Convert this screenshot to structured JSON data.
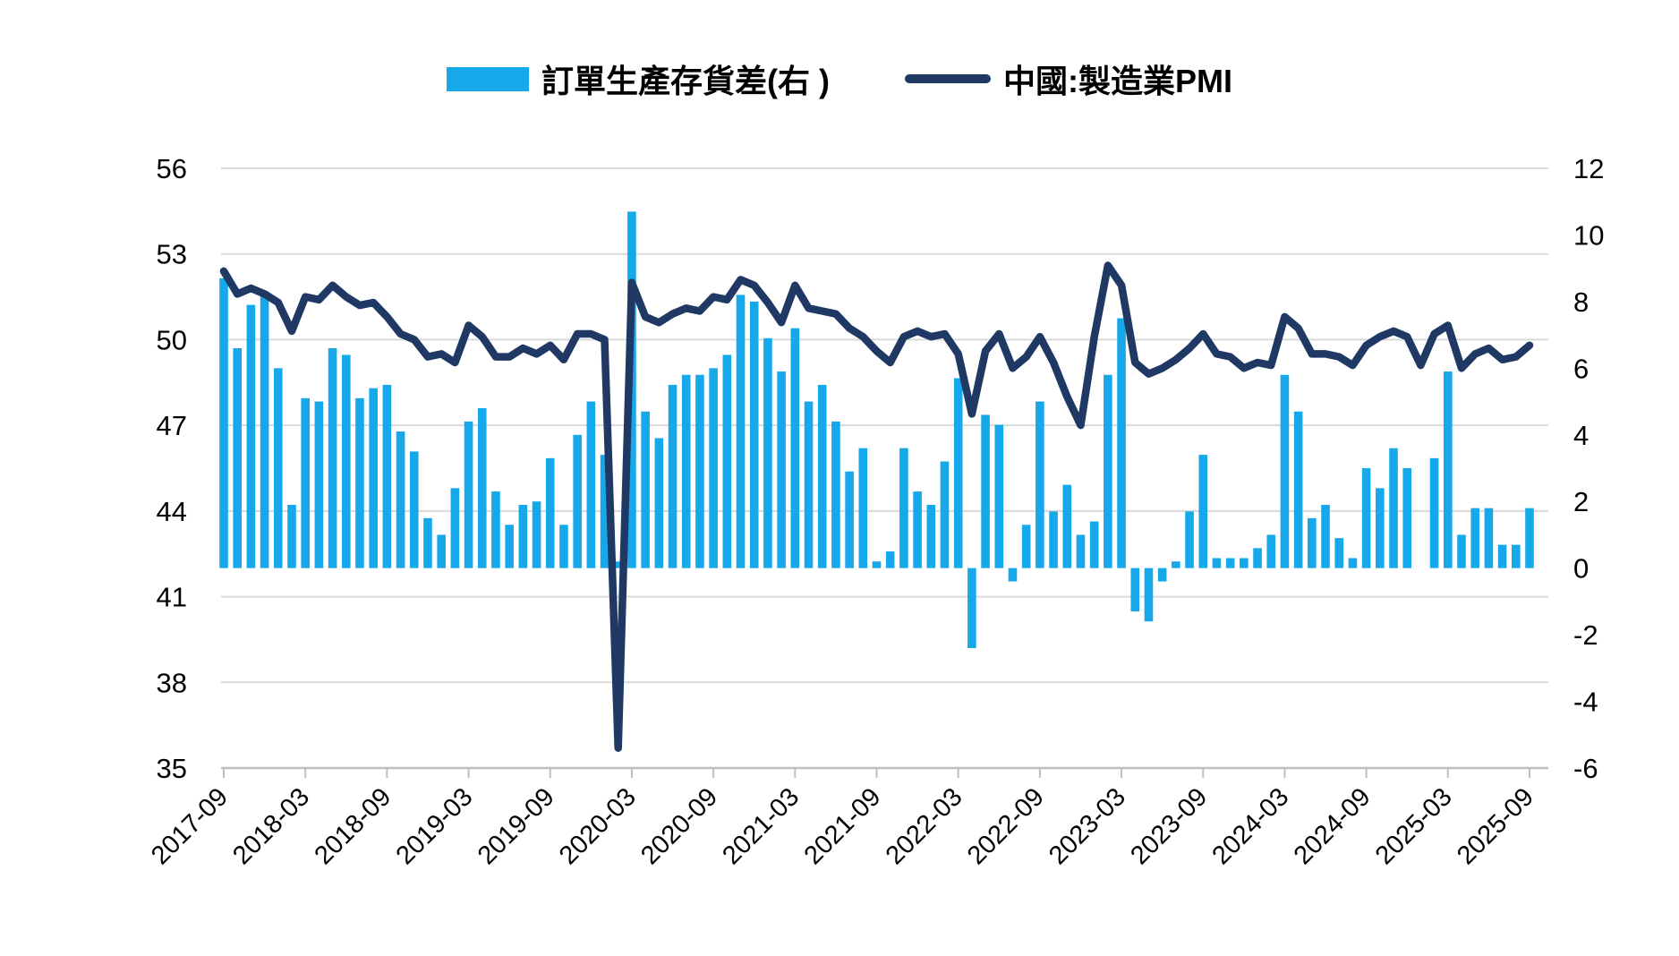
{
  "legend": {
    "items": [
      {
        "label": "訂單生產存貨差(右 )",
        "marker": "bar-swatch-icon"
      },
      {
        "label": "中國:製造業PMI",
        "marker": "line-swatch-icon"
      }
    ]
  },
  "colors": {
    "bar": "#17A8EA",
    "line": "#1F3864",
    "grid": "#D9D9D9",
    "axis": "#BFBFBF",
    "text": "#000000",
    "background": "#FFFFFF"
  },
  "chart_data": {
    "type": "bar+line",
    "title": "",
    "xlabel": "",
    "ylabel_left": "",
    "ylabel_right": "",
    "legend_position": "top-center",
    "grid": true,
    "left_axis": {
      "min": 35,
      "max": 56,
      "ticks": [
        56,
        53,
        50,
        47,
        44,
        41,
        38,
        35
      ]
    },
    "right_axis": {
      "min": -6,
      "max": 12,
      "ticks": [
        12,
        10,
        8,
        6,
        4,
        2,
        0,
        -2,
        -4,
        -6
      ]
    },
    "x_tick_labels": [
      "2017-09",
      "2018-03",
      "2018-09",
      "2019-03",
      "2019-09",
      "2020-03",
      "2020-09",
      "2021-03",
      "2021-09",
      "2022-03",
      "2022-09",
      "2023-03",
      "2023-09",
      "2024-03",
      "2024-09",
      "2025-03",
      "2025-09"
    ],
    "x_tick_every": 6,
    "categories": [
      "2017-09",
      "2017-10",
      "2017-11",
      "2017-12",
      "2018-01",
      "2018-02",
      "2018-03",
      "2018-04",
      "2018-05",
      "2018-06",
      "2018-07",
      "2018-08",
      "2018-09",
      "2018-10",
      "2018-11",
      "2018-12",
      "2019-01",
      "2019-02",
      "2019-03",
      "2019-04",
      "2019-05",
      "2019-06",
      "2019-07",
      "2019-08",
      "2019-09",
      "2019-10",
      "2019-11",
      "2019-12",
      "2020-01",
      "2020-02",
      "2020-03",
      "2020-04",
      "2020-05",
      "2020-06",
      "2020-07",
      "2020-08",
      "2020-09",
      "2020-10",
      "2020-11",
      "2020-12",
      "2021-01",
      "2021-02",
      "2021-03",
      "2021-04",
      "2021-05",
      "2021-06",
      "2021-07",
      "2021-08",
      "2021-09",
      "2021-10",
      "2021-11",
      "2021-12",
      "2022-01",
      "2022-02",
      "2022-03",
      "2022-04",
      "2022-05",
      "2022-06",
      "2022-07",
      "2022-08",
      "2022-09",
      "2022-10",
      "2022-11",
      "2022-12",
      "2023-01",
      "2023-02",
      "2023-03",
      "2023-04",
      "2023-05",
      "2023-06",
      "2023-07",
      "2023-08",
      "2023-09",
      "2023-10",
      "2023-11",
      "2023-12",
      "2024-01",
      "2024-02",
      "2024-03",
      "2024-04",
      "2024-05",
      "2024-06",
      "2024-07",
      "2024-08",
      "2024-09",
      "2024-10",
      "2024-11",
      "2024-12",
      "2025-01",
      "2025-02",
      "2025-03",
      "2025-04",
      "2025-05",
      "2025-06",
      "2025-07",
      "2025-08",
      "2025-09"
    ],
    "series": [
      {
        "name": "訂單生產存貨差(右 )",
        "type": "bar",
        "axis": "right",
        "values": [
          8.7,
          6.6,
          7.9,
          8.3,
          6.0,
          1.9,
          5.1,
          5.0,
          6.6,
          6.4,
          5.1,
          5.4,
          5.5,
          4.1,
          3.5,
          1.5,
          1.0,
          2.4,
          4.4,
          4.8,
          2.3,
          1.3,
          1.9,
          2.0,
          3.3,
          1.3,
          4.0,
          5.0,
          3.4,
          0.2,
          10.7,
          4.7,
          3.9,
          5.5,
          5.8,
          5.8,
          6.0,
          6.4,
          8.2,
          8.0,
          6.9,
          5.9,
          7.2,
          5.0,
          5.5,
          4.4,
          2.9,
          3.6,
          0.2,
          0.5,
          3.6,
          2.3,
          1.9,
          3.2,
          5.7,
          -2.4,
          4.6,
          4.3,
          -0.4,
          1.3,
          5.0,
          1.7,
          2.5,
          1.0,
          1.4,
          5.8,
          7.5,
          -1.3,
          -1.6,
          -0.4,
          0.2,
          1.7,
          3.4,
          0.3,
          0.3,
          0.3,
          0.6,
          1.0,
          5.8,
          4.7,
          1.5,
          1.9,
          0.9,
          0.3,
          3.0,
          2.4,
          3.6,
          3.0,
          0.0,
          3.3,
          5.9,
          1.0,
          1.8,
          1.8,
          0.7,
          0.7,
          1.8
        ]
      },
      {
        "name": "中國:製造業PMI",
        "type": "line",
        "axis": "left",
        "values": [
          52.4,
          51.6,
          51.8,
          51.6,
          51.3,
          50.3,
          51.5,
          51.4,
          51.9,
          51.5,
          51.2,
          51.3,
          50.8,
          50.2,
          50.0,
          49.4,
          49.5,
          49.2,
          50.5,
          50.1,
          49.4,
          49.4,
          49.7,
          49.5,
          49.8,
          49.3,
          50.2,
          50.2,
          50.0,
          35.7,
          52.0,
          50.8,
          50.6,
          50.9,
          51.1,
          51.0,
          51.5,
          51.4,
          52.1,
          51.9,
          51.3,
          50.6,
          51.9,
          51.1,
          51.0,
          50.9,
          50.4,
          50.1,
          49.6,
          49.2,
          50.1,
          50.3,
          50.1,
          50.2,
          49.5,
          47.4,
          49.6,
          50.2,
          49.0,
          49.4,
          50.1,
          49.2,
          48.0,
          47.0,
          50.1,
          52.6,
          51.9,
          49.2,
          48.8,
          49.0,
          49.3,
          49.7,
          50.2,
          49.5,
          49.4,
          49.0,
          49.2,
          49.1,
          50.8,
          50.4,
          49.5,
          49.5,
          49.4,
          49.1,
          49.8,
          50.1,
          50.3,
          50.1,
          49.1,
          50.2,
          50.5,
          49.0,
          49.5,
          49.7,
          49.3,
          49.4,
          49.8
        ]
      }
    ]
  }
}
